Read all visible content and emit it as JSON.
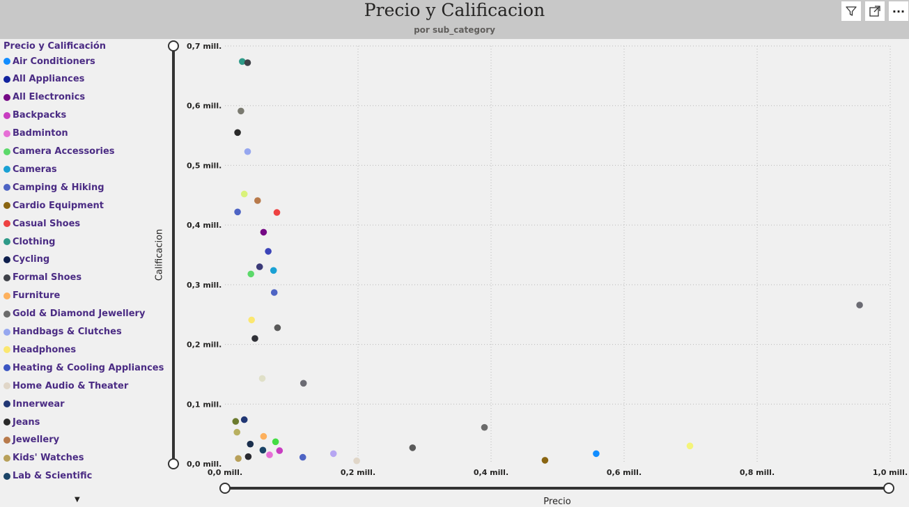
{
  "header": {
    "title": "Precio y Calificacion",
    "subtitle": "por sub_category"
  },
  "toolbar": {
    "icons": [
      "filter-icon",
      "focus-mode-icon",
      "more-options-icon"
    ],
    "more_label": "···"
  },
  "legend": {
    "title": "Precio y Calificación",
    "items": [
      {
        "label": "Air Conditioners",
        "color": "#118dff"
      },
      {
        "label": "All Appliances",
        "color": "#12239e"
      },
      {
        "label": "All Electronics",
        "color": "#750985"
      },
      {
        "label": "Backpacks",
        "color": "#c83dc1"
      },
      {
        "label": "Badminton",
        "color": "#e66fd6"
      },
      {
        "label": "Camera Accessories",
        "color": "#5cd96a"
      },
      {
        "label": "Cameras",
        "color": "#1aa1d4"
      },
      {
        "label": "Camping & Hiking",
        "color": "#4e64c4"
      },
      {
        "label": "Cardio Equipment",
        "color": "#8a6512"
      },
      {
        "label": "Casual Shoes",
        "color": "#ee4242"
      },
      {
        "label": "Clothing",
        "color": "#2e9a88"
      },
      {
        "label": "Cycling",
        "color": "#0e1f4d"
      },
      {
        "label": "Formal Shoes",
        "color": "#3f4148"
      },
      {
        "label": "Furniture",
        "color": "#fdb05d"
      },
      {
        "label": "Gold & Diamond Jewellery",
        "color": "#6b6b6b"
      },
      {
        "label": "Handbags & Clutches",
        "color": "#96a7ef"
      },
      {
        "label": "Headphones",
        "color": "#fbe770"
      },
      {
        "label": "Heating & Cooling Appliances",
        "color": "#3b55c2"
      },
      {
        "label": "Home Audio & Theater",
        "color": "#e0d6c8"
      },
      {
        "label": "Innerwear",
        "color": "#213774"
      },
      {
        "label": "Jeans",
        "color": "#2a2a2a"
      },
      {
        "label": "Jewellery",
        "color": "#b87a4b"
      },
      {
        "label": "Kids' Watches",
        "color": "#b8a05a"
      },
      {
        "label": "Lab & Scientific",
        "color": "#1b4467"
      }
    ]
  },
  "chart_data": {
    "type": "scatter",
    "title": "Precio y Calificacion",
    "subtitle": "por sub_category",
    "xlabel": "Precio",
    "ylabel": "Calificacion",
    "xlim": [
      0,
      1000000
    ],
    "ylim": [
      0,
      700000
    ],
    "x_ticks": [
      "0,0 mill.",
      "0,2 mill.",
      "0,4 mill.",
      "0,6 mill.",
      "0,8 mill.",
      "1,0 mill."
    ],
    "y_ticks": [
      "0,0 mill.",
      "0,1 mill.",
      "0,2 mill.",
      "0,3 mill.",
      "0,4 mill.",
      "0,5 mill.",
      "0,6 mill.",
      "0,7 mill."
    ],
    "grid": true,
    "points": [
      {
        "x": 26000,
        "y": 674000,
        "color": "#2e9a88"
      },
      {
        "x": 34000,
        "y": 672000,
        "color": "#3f4148"
      },
      {
        "x": 24000,
        "y": 591000,
        "color": "#7a7a70"
      },
      {
        "x": 19000,
        "y": 555000,
        "color": "#2a2a2a"
      },
      {
        "x": 34000,
        "y": 523000,
        "color": "#96a7ef"
      },
      {
        "x": 29000,
        "y": 452000,
        "color": "#d9f27a"
      },
      {
        "x": 49000,
        "y": 441000,
        "color": "#b87a4b"
      },
      {
        "x": 19000,
        "y": 422000,
        "color": "#4e64c4"
      },
      {
        "x": 78000,
        "y": 421000,
        "color": "#ee4242"
      },
      {
        "x": 58000,
        "y": 388000,
        "color": "#750985"
      },
      {
        "x": 65000,
        "y": 356000,
        "color": "#3b44b8"
      },
      {
        "x": 52000,
        "y": 330000,
        "color": "#3b3a78"
      },
      {
        "x": 73000,
        "y": 324000,
        "color": "#1aa1d4"
      },
      {
        "x": 39000,
        "y": 318000,
        "color": "#5cd96a"
      },
      {
        "x": 74000,
        "y": 287000,
        "color": "#4e64c4"
      },
      {
        "x": 954000,
        "y": 266000,
        "color": "#6b6b73"
      },
      {
        "x": 40000,
        "y": 241000,
        "color": "#fbe770"
      },
      {
        "x": 79000,
        "y": 228000,
        "color": "#5a5a5a"
      },
      {
        "x": 45000,
        "y": 210000,
        "color": "#2f3036"
      },
      {
        "x": 56000,
        "y": 143000,
        "color": "#e0e0c8"
      },
      {
        "x": 118000,
        "y": 135000,
        "color": "#6b6b73"
      },
      {
        "x": 16000,
        "y": 71000,
        "color": "#6b7a2e"
      },
      {
        "x": 29000,
        "y": 74000,
        "color": "#213774"
      },
      {
        "x": 390000,
        "y": 61000,
        "color": "#6b6b6b"
      },
      {
        "x": 18000,
        "y": 53000,
        "color": "#b8b060"
      },
      {
        "x": 58000,
        "y": 46000,
        "color": "#fdb05d"
      },
      {
        "x": 76000,
        "y": 37000,
        "color": "#44dd44"
      },
      {
        "x": 38000,
        "y": 33000,
        "color": "#1b2f4d"
      },
      {
        "x": 282000,
        "y": 27000,
        "color": "#5a5a5a"
      },
      {
        "x": 699000,
        "y": 30000,
        "color": "#f4f47a"
      },
      {
        "x": 57000,
        "y": 23000,
        "color": "#1b4467"
      },
      {
        "x": 82000,
        "y": 22000,
        "color": "#c83dc1"
      },
      {
        "x": 558000,
        "y": 17000,
        "color": "#118dff"
      },
      {
        "x": 163000,
        "y": 17000,
        "color": "#b6a6f2"
      },
      {
        "x": 67000,
        "y": 15000,
        "color": "#e66fd6"
      },
      {
        "x": 35000,
        "y": 12000,
        "color": "#2a2a30"
      },
      {
        "x": 117000,
        "y": 11000,
        "color": "#4e64c4"
      },
      {
        "x": 20000,
        "y": 9000,
        "color": "#b8a05a"
      },
      {
        "x": 198000,
        "y": 5000,
        "color": "#e0d6c8"
      },
      {
        "x": 481000,
        "y": 6000,
        "color": "#8a6512"
      }
    ]
  }
}
